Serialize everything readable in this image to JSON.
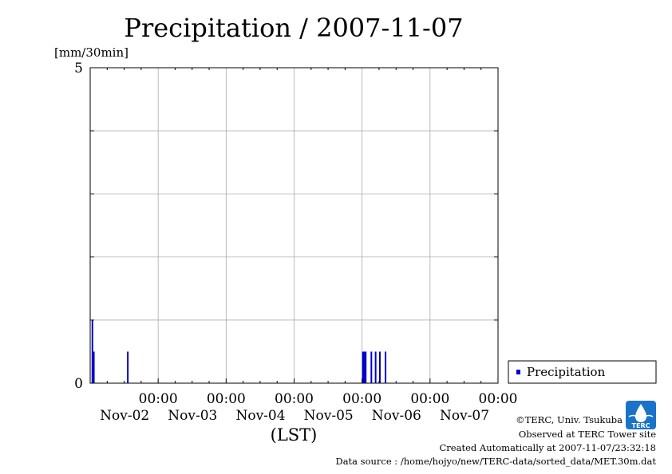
{
  "chart_data": {
    "type": "bar",
    "title": "Precipitation / 2007-11-07",
    "ylabel": "[mm/30min]",
    "xlabel": "(LST)",
    "ylim": [
      0,
      5
    ],
    "y_ticks": [
      "0",
      "5"
    ],
    "x_range_days": [
      0,
      6
    ],
    "x_ticks": [
      {
        "time": "00:00",
        "date": "Nov-02",
        "day": 1
      },
      {
        "time": "00:00",
        "date": "Nov-03",
        "day": 2
      },
      {
        "time": "00:00",
        "date": "Nov-04",
        "day": 3
      },
      {
        "time": "00:00",
        "date": "Nov-05",
        "day": 4
      },
      {
        "time": "00:00",
        "date": "Nov-06",
        "day": 5
      },
      {
        "time": "00:00",
        "date": "Nov-07",
        "day": 6
      }
    ],
    "grid": true,
    "legend_position": "right",
    "series": [
      {
        "name": "Precipitation",
        "color": "#0000cc",
        "points": [
          {
            "t": "2007-11-01 00:30",
            "value": 1.0
          },
          {
            "t": "2007-11-01 01:00",
            "value": 0.5
          },
          {
            "t": "2007-11-01 13:00",
            "value": 0.5
          },
          {
            "t": "2007-11-05 00:00",
            "value": 0.5
          },
          {
            "t": "2007-11-05 00:30",
            "value": 0.5
          },
          {
            "t": "2007-11-05 01:00",
            "value": 0.5
          },
          {
            "t": "2007-11-05 03:00",
            "value": 0.5
          },
          {
            "t": "2007-11-05 04:30",
            "value": 0.5
          },
          {
            "t": "2007-11-05 06:00",
            "value": 0.5
          },
          {
            "t": "2007-11-05 08:00",
            "value": 0.5
          }
        ]
      }
    ]
  },
  "footer": {
    "copyright": "©TERC, Univ. Tsukuba",
    "observed": "Observed at TERC Tower site",
    "created": "Created Automatically at 2007-11-07/23:32:18",
    "source": "Data source : /home/hojyo/new/TERC-data/sorted_data/MET.30m.dat"
  },
  "logo": {
    "text": "TERC",
    "color": "#1a73c8"
  }
}
